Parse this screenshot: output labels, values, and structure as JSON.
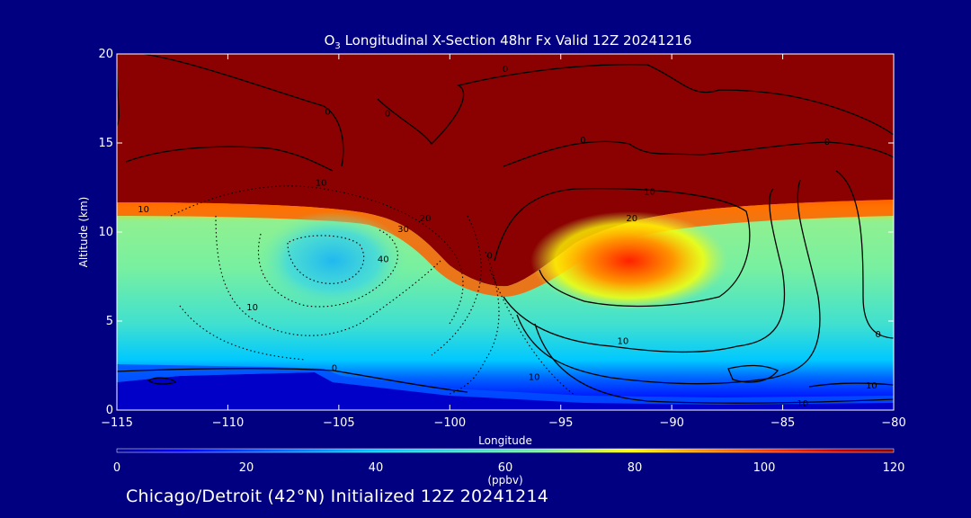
{
  "chart_data": {
    "type": "heatmap",
    "title_prefix": "O",
    "title_sub": "3",
    "title_rest": " Longitudinal X-Section 48hr  Fx Valid 12Z 20241216",
    "xlabel": "Longitude",
    "ylabel": "Altitude (km)",
    "xlim": [
      -115,
      -80
    ],
    "ylim": [
      0,
      20
    ],
    "x_ticks": [
      -115,
      -110,
      -105,
      -100,
      -95,
      -90,
      -85,
      -80
    ],
    "x_tick_labels": [
      "−115",
      "−110",
      "−105",
      "−100",
      "−95",
      "−90",
      "−85",
      "−80"
    ],
    "y_ticks": [
      0,
      5,
      10,
      15,
      20
    ],
    "y_tick_labels": [
      "0",
      "5",
      "10",
      "15",
      "20"
    ],
    "colorbar": {
      "min": 0,
      "max": 120,
      "ticks": [
        0,
        20,
        40,
        60,
        80,
        100,
        120
      ],
      "tick_labels": [
        "0",
        "20",
        "40",
        "60",
        "80",
        "100",
        "120"
      ],
      "unit": "(ppbv)",
      "colors": [
        "#000096",
        "#0000ff",
        "#0064ff",
        "#00c8ff",
        "#40e0d0",
        "#78f0a0",
        "#c8f05a",
        "#ffff00",
        "#ff9600",
        "#ff3200",
        "#c80000",
        "#8b0000"
      ]
    },
    "heatmap_regions": [
      {
        "value": 120,
        "description_color": "#8b0000",
        "x": [
          -115,
          -80
        ],
        "y": [
          11.5,
          20
        ]
      },
      {
        "value": 55,
        "x": [
          -115,
          -80
        ],
        "y": [
          2.5,
          11.5
        ]
      },
      {
        "value": 5,
        "x": [
          -115,
          -80
        ],
        "y": [
          0,
          2
        ]
      }
    ],
    "contour_labels": [
      {
        "text": "0",
        "x": -97.5,
        "y": 19.0
      },
      {
        "text": "0",
        "x": -105.5,
        "y": 16.6
      },
      {
        "text": "0",
        "x": -102.8,
        "y": 16.5
      },
      {
        "text": "0",
        "x": -94.0,
        "y": 15.0
      },
      {
        "text": "0",
        "x": -83.0,
        "y": 14.9
      },
      {
        "text": "10",
        "x": -105.8,
        "y": 12.6
      },
      {
        "text": "10",
        "x": -113.8,
        "y": 11.1
      },
      {
        "text": "10",
        "x": -91.0,
        "y": 12.1
      },
      {
        "text": "20",
        "x": -91.8,
        "y": 10.6
      },
      {
        "text": "20",
        "x": -101.1,
        "y": 10.6
      },
      {
        "text": "30",
        "x": -102.1,
        "y": 10.0
      },
      {
        "text": "40",
        "x": -103.0,
        "y": 8.3
      },
      {
        "text": "0",
        "x": -98.2,
        "y": 8.5
      },
      {
        "text": "10",
        "x": -108.9,
        "y": 5.6
      },
      {
        "text": "10",
        "x": -92.2,
        "y": 3.7
      },
      {
        "text": "10",
        "x": -96.2,
        "y": 1.7
      },
      {
        "text": "0",
        "x": -80.7,
        "y": 4.1
      },
      {
        "text": "10",
        "x": -81.0,
        "y": 1.2
      },
      {
        "text": "10",
        "x": -84.1,
        "y": 0.2
      },
      {
        "text": "0",
        "x": -105.2,
        "y": 2.2
      }
    ]
  },
  "footer": "Chicago/Detroit (42°N) Initialized 12Z 20241214"
}
